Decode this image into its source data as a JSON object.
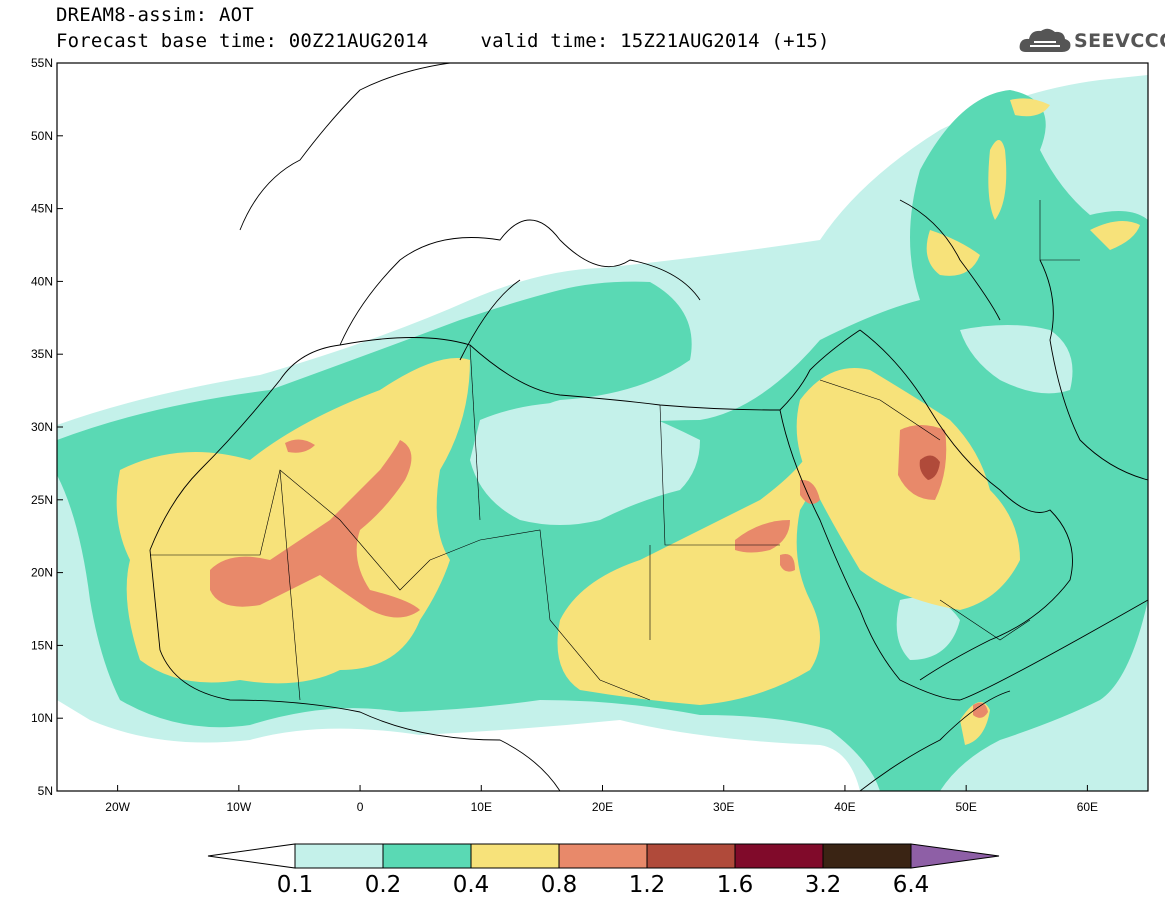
{
  "header": {
    "line1": "DREAM8-assim: AOT",
    "base_time": "Forecast base time: 00Z21AUG2014",
    "valid_time": "valid time: 15Z21AUG2014 (+15)"
  },
  "logo": {
    "text": "SEEVCCC",
    "icon": "cloud-icon"
  },
  "map": {
    "lon_range": [
      -25,
      65
    ],
    "lat_range": [
      5,
      55
    ],
    "lon_ticks": [
      {
        "value": -20,
        "label": "20W"
      },
      {
        "value": -10,
        "label": "10W"
      },
      {
        "value": 0,
        "label": "0"
      },
      {
        "value": 10,
        "label": "10E"
      },
      {
        "value": 20,
        "label": "20E"
      },
      {
        "value": 30,
        "label": "30E"
      },
      {
        "value": 40,
        "label": "40E"
      },
      {
        "value": 50,
        "label": "50E"
      },
      {
        "value": 60,
        "label": "60E"
      }
    ],
    "lat_ticks": [
      {
        "value": 5,
        "label": "5N"
      },
      {
        "value": 10,
        "label": "10N"
      },
      {
        "value": 15,
        "label": "15N"
      },
      {
        "value": 20,
        "label": "20N"
      },
      {
        "value": 25,
        "label": "25N"
      },
      {
        "value": 30,
        "label": "30N"
      },
      {
        "value": 35,
        "label": "35N"
      },
      {
        "value": 40,
        "label": "40N"
      },
      {
        "value": 45,
        "label": "45N"
      },
      {
        "value": 50,
        "label": "50N"
      },
      {
        "value": 55,
        "label": "55N"
      }
    ]
  },
  "colorbar": {
    "labels": [
      "0.1",
      "0.2",
      "0.4",
      "0.8",
      "1.2",
      "1.6",
      "3.2",
      "6.4"
    ],
    "colors": [
      "#c4f1ea",
      "#5ad9b4",
      "#f7e27a",
      "#e8896a",
      "#b04a3a",
      "#800a2a",
      "#3a2414",
      "#8e5fa6"
    ]
  }
}
